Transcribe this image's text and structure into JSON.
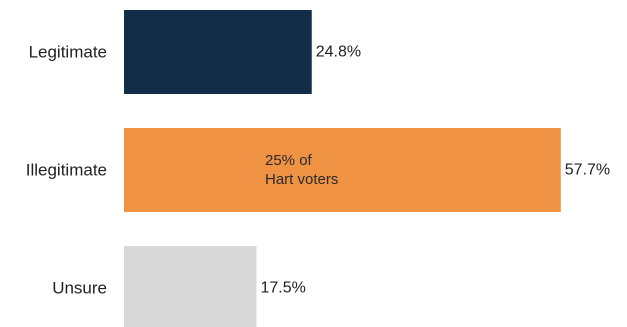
{
  "chart_data": {
    "type": "bar",
    "orientation": "horizontal",
    "categories": [
      "Legitimate",
      "Illegitimate",
      "Unsure"
    ],
    "values": [
      24.8,
      57.7,
      17.5
    ],
    "value_labels": [
      "24.8%",
      "57.7%",
      "17.5%"
    ],
    "colors": [
      "#132c48",
      "#ef9244",
      "#d9d9d9"
    ],
    "xlim": [
      0,
      60
    ],
    "grid": false,
    "annotation": {
      "category": "Illegitimate",
      "lines": [
        "25% of",
        "Hart voters"
      ]
    }
  }
}
